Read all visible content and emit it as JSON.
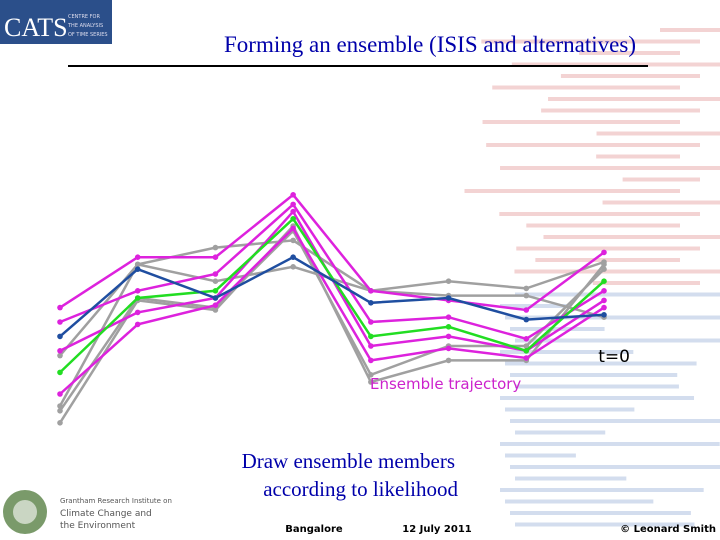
{
  "header": {
    "logo_text": "CATS",
    "logo_subtitle": [
      "CENTRE FOR",
      "THE ANALYSIS",
      "OF TIME SERIES"
    ],
    "title": "Forming an ensemble (ISIS and alternatives)"
  },
  "chart_data": {
    "type": "line",
    "x": [
      0,
      1,
      2,
      3,
      4,
      5,
      6,
      7
    ],
    "xlim": [
      0,
      7
    ],
    "ylim": [
      0,
      100
    ],
    "series": [
      {
        "color": "#a0a0a0",
        "values": [
          31,
          69,
          76,
          79,
          58,
          62,
          59,
          70
        ]
      },
      {
        "color": "#a0a0a0",
        "values": [
          8,
          55,
          51,
          83,
          23,
          35,
          35,
          67
        ]
      },
      {
        "color": "#a0a0a0",
        "values": [
          3,
          54,
          50,
          85,
          20,
          29,
          29,
          69
        ]
      },
      {
        "color": "#a0a0a0",
        "values": [
          10,
          69,
          62,
          68,
          58,
          56,
          56,
          47
        ]
      },
      {
        "color": "#dd22dd",
        "values": [
          51,
          72,
          72,
          98,
          58,
          54,
          50,
          74
        ]
      },
      {
        "color": "#dd22dd",
        "values": [
          45,
          58,
          65,
          94,
          45,
          47,
          38,
          58
        ]
      },
      {
        "color": "#dd22dd",
        "values": [
          33,
          49,
          55,
          91,
          35,
          39,
          33,
          54
        ]
      },
      {
        "color": "#dd22dd",
        "values": [
          15,
          44,
          52,
          84,
          29,
          34,
          30,
          51
        ]
      },
      {
        "color": "#22dd22",
        "values": [
          24,
          55,
          58,
          88,
          39,
          43,
          33,
          62
        ]
      },
      {
        "color": "#1f4ea0",
        "values": [
          39,
          67,
          55,
          72,
          53,
          55,
          46,
          48
        ]
      }
    ]
  },
  "annotations": {
    "t0": "t=0",
    "trajectory": "Ensemble trajectory",
    "draw": [
      "Draw ensemble members",
      "according to likelihood"
    ]
  },
  "footer": {
    "institute": [
      "Grantham Research Institute on",
      "Climate Change and",
      "the Environment"
    ],
    "place": "Bangalore",
    "date": "12 July 2011",
    "credit": "© Leonard Smith"
  }
}
